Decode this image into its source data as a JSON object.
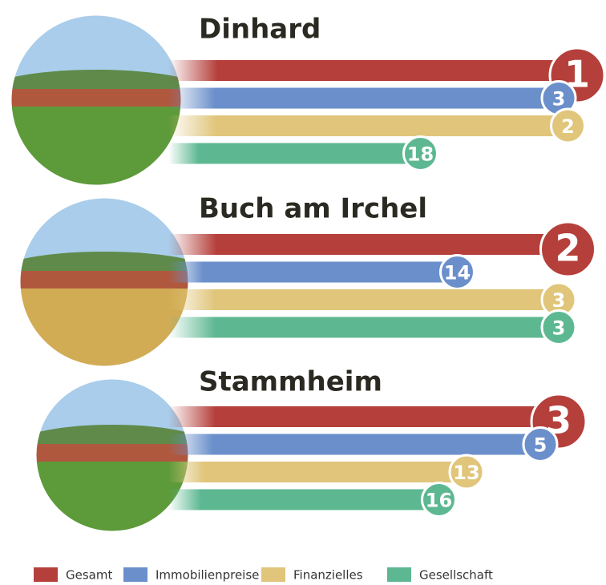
{
  "chart_data": {
    "type": "bar",
    "categories": [
      "Dinhard",
      "Buch am Irchel",
      "Stammheim"
    ],
    "series": [
      {
        "name": "Gesamt",
        "color": "#b5403b",
        "values": [
          1,
          2,
          3
        ]
      },
      {
        "name": "Immobilienpreise",
        "color": "#6a8fcb",
        "values": [
          3,
          14,
          5
        ]
      },
      {
        "name": "Finanzielles",
        "color": "#e0c57a",
        "values": [
          2,
          3,
          13
        ]
      },
      {
        "name": "Gesellschaft",
        "color": "#5db892",
        "values": [
          18,
          3,
          16
        ]
      }
    ]
  }
}
